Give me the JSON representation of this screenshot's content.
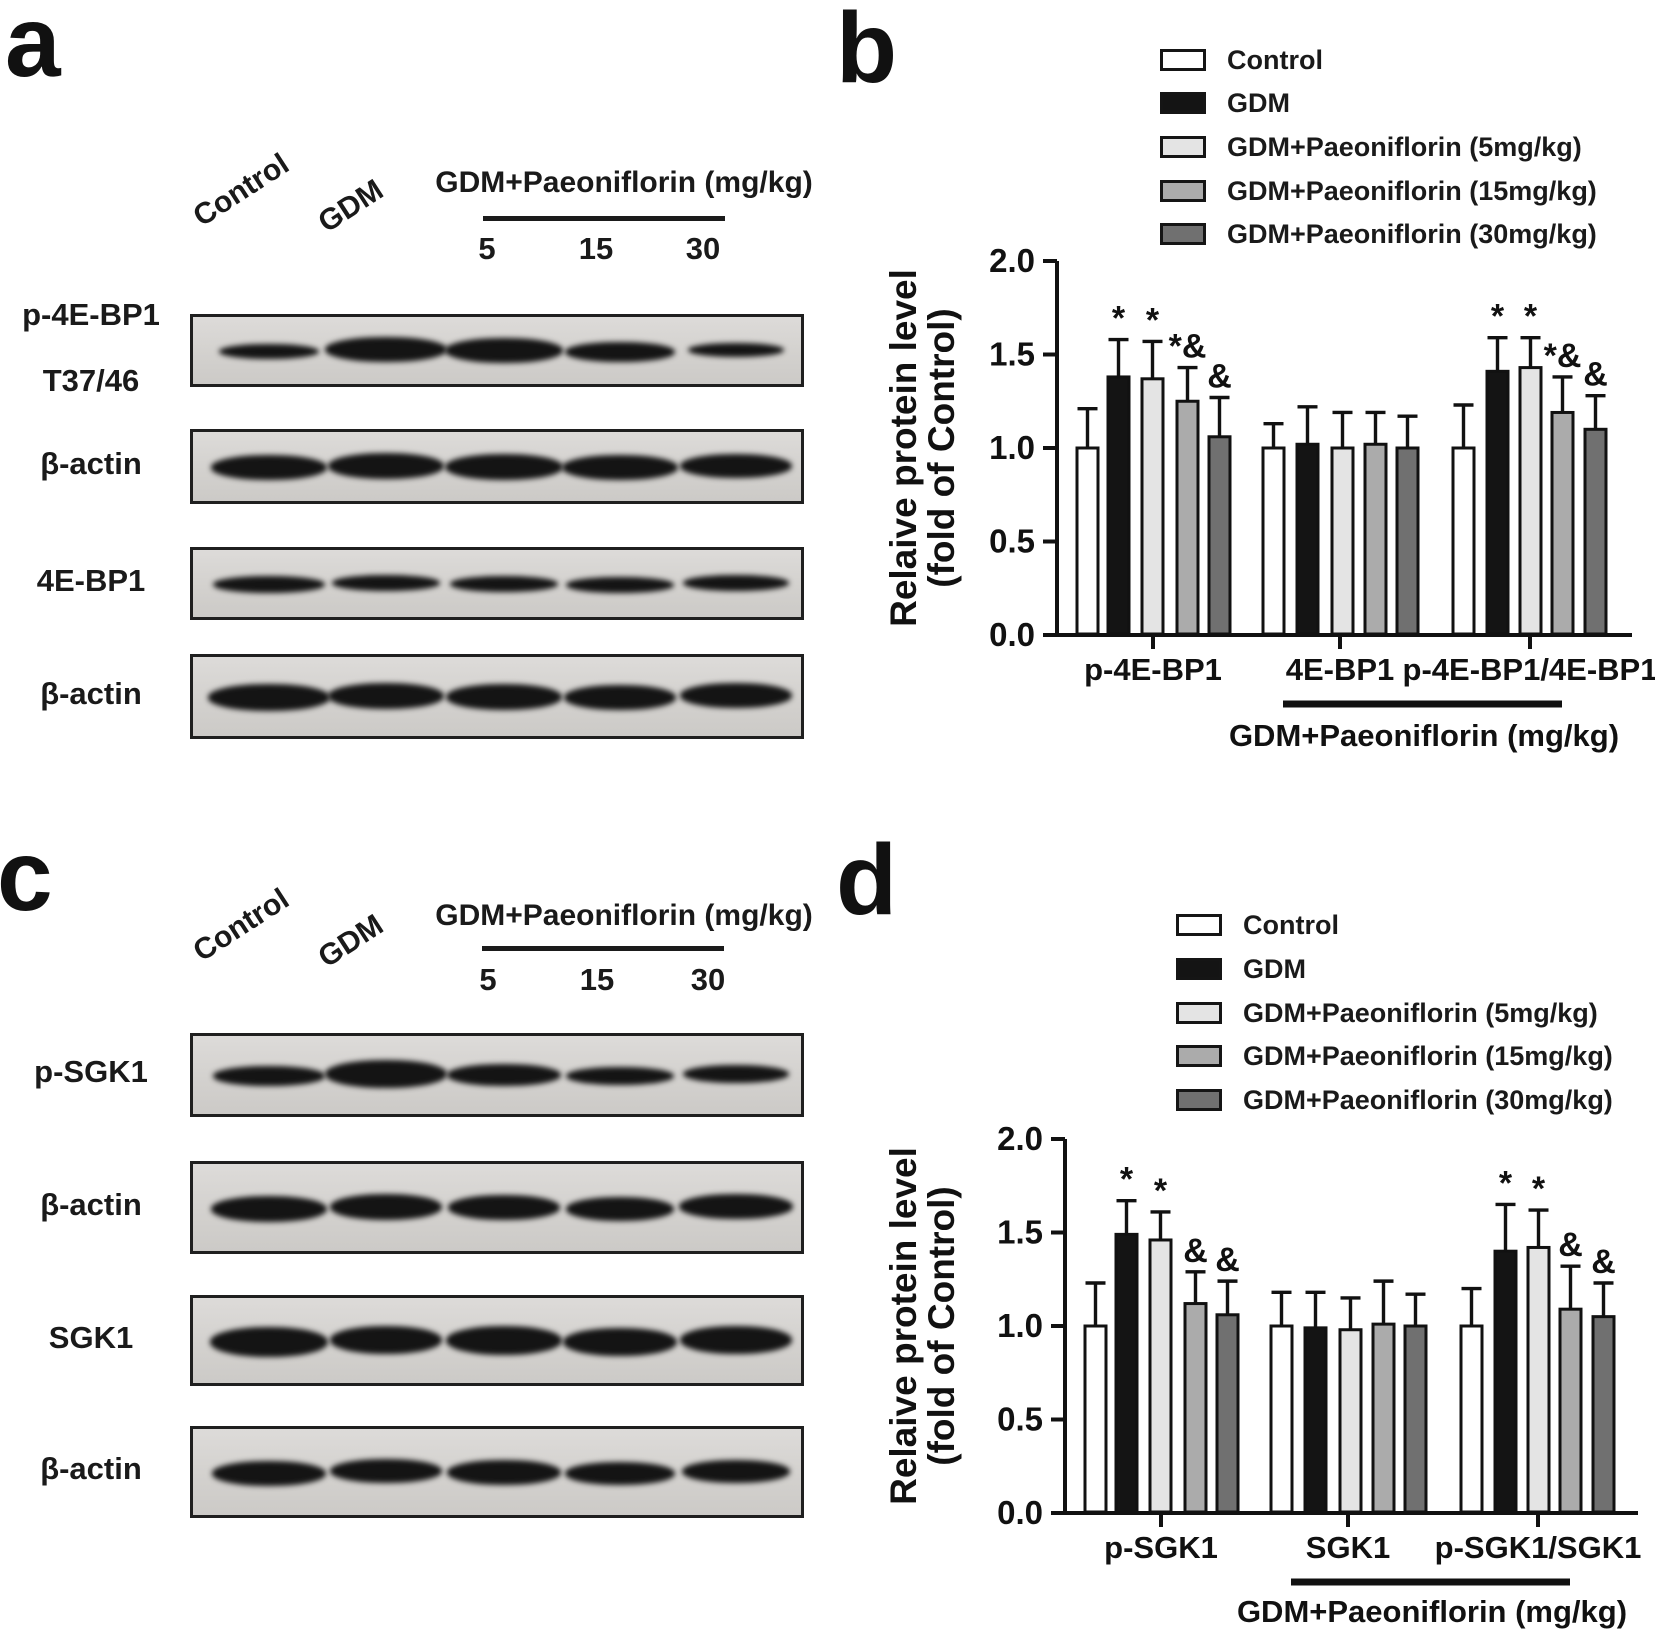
{
  "figure": {
    "panels": {
      "a": {
        "letter": "a",
        "treatment_header": "GDM+Paeoniflorin (mg/kg)",
        "doses": [
          "5",
          "15",
          "30"
        ],
        "lane_labels": [
          "Control",
          "GDM"
        ],
        "blot_rows": [
          {
            "label": "p-4E-BP1",
            "sublabel": "T37/46",
            "band_widths": [
              100,
              122,
              118,
              110,
              96
            ],
            "band_heights": [
              15,
              25,
              25,
              20,
              14
            ]
          },
          {
            "label": "β-actin",
            "sublabel": "",
            "band_widths": [
              116,
              116,
              118,
              116,
              112
            ],
            "band_heights": [
              25,
              26,
              26,
              25,
              24
            ]
          },
          {
            "label": "4E-BP1",
            "sublabel": "",
            "band_widths": [
              112,
              108,
              108,
              108,
              106
            ],
            "band_heights": [
              17,
              16,
              16,
              16,
              16
            ]
          },
          {
            "label": "β-actin",
            "sublabel": "",
            "band_widths": [
              122,
              116,
              116,
              112,
              112
            ],
            "band_heights": [
              27,
              26,
              26,
              25,
              25
            ]
          }
        ]
      },
      "b": {
        "letter": "b"
      },
      "c": {
        "letter": "c",
        "treatment_header": "GDM+Paeoniflorin (mg/kg)",
        "doses": [
          "5",
          "15",
          "30"
        ],
        "lane_labels": [
          "Control",
          "GDM"
        ],
        "blot_rows": [
          {
            "label": "p-SGK1",
            "sublabel": "",
            "band_widths": [
              112,
              122,
              114,
              108,
              106
            ],
            "band_heights": [
              20,
              28,
              22,
              18,
              18
            ]
          },
          {
            "label": "β-actin",
            "sublabel": "",
            "band_widths": [
              116,
              112,
              112,
              108,
              114
            ],
            "band_heights": [
              26,
              26,
              25,
              24,
              25
            ]
          },
          {
            "label": "SGK1",
            "sublabel": "",
            "band_widths": [
              118,
              112,
              116,
              114,
              112
            ],
            "band_heights": [
              30,
              28,
              29,
              28,
              28
            ]
          },
          {
            "label": "β-actin",
            "sublabel": "",
            "band_widths": [
              114,
              112,
              114,
              110,
              108
            ],
            "band_heights": [
              25,
              24,
              25,
              23,
              23
            ]
          }
        ]
      },
      "d": {
        "letter": "d"
      }
    }
  },
  "legend": {
    "items": [
      {
        "label": "Control",
        "color": "#ffffff"
      },
      {
        "label": "GDM",
        "color": "#141414"
      },
      {
        "label": "GDM+Paeoniflorin (5mg/kg)",
        "color": "#e4e4e4"
      },
      {
        "label": "GDM+Paeoniflorin (15mg/kg)",
        "color": "#ababab"
      },
      {
        "label": "GDM+Paeoniflorin (30mg/kg)",
        "color": "#707070"
      }
    ]
  },
  "chart_data": [
    {
      "type": "bar",
      "panel": "b",
      "title": "",
      "ylabel": "Relaive protein level (fold of Control)",
      "ylabel_lines": [
        "Relaive protein level",
        "(fold of Control)"
      ],
      "ylim": [
        0.0,
        2.0
      ],
      "yticks": [
        "0.0",
        "0.5",
        "1.0",
        "1.5",
        "2.0"
      ],
      "grid": false,
      "legend_position": "top-right",
      "series": [
        "Control",
        "GDM",
        "GDM+Paeoniflorin (5mg/kg)",
        "GDM+Paeoniflorin (15mg/kg)",
        "GDM+Paeoniflorin (30mg/kg)"
      ],
      "series_colors": [
        "#ffffff",
        "#141414",
        "#e4e4e4",
        "#ababab",
        "#707070"
      ],
      "categories": [
        "p-4E-BP1",
        "4E-BP1",
        "p-4E-BP1/4E-BP1"
      ],
      "groups": [
        {
          "category": "p-4E-BP1",
          "values": [
            1.0,
            1.38,
            1.37,
            1.25,
            1.06
          ],
          "errors": [
            0.21,
            0.2,
            0.2,
            0.18,
            0.21
          ],
          "markers": [
            "",
            "*",
            "*",
            "*&",
            "&"
          ]
        },
        {
          "category": "4E-BP1",
          "values": [
            1.0,
            1.02,
            1.0,
            1.02,
            1.0
          ],
          "errors": [
            0.13,
            0.2,
            0.19,
            0.17,
            0.17
          ],
          "markers": [
            "",
            "",
            "",
            "",
            ""
          ]
        },
        {
          "category": "p-4E-BP1/4E-BP1",
          "values": [
            1.0,
            1.41,
            1.43,
            1.19,
            1.1
          ],
          "errors": [
            0.23,
            0.18,
            0.16,
            0.19,
            0.18
          ],
          "markers": [
            "",
            "*",
            "*",
            "*&",
            "&"
          ]
        }
      ],
      "axis_annotation": {
        "text": "GDM+Paeoniflorin (mg/kg)",
        "underline_span": "4E-BP1 to p-4E-BP1/4E-BP1"
      }
    },
    {
      "type": "bar",
      "panel": "d",
      "title": "",
      "ylabel": "Relaive protein level (fold of Control)",
      "ylabel_lines": [
        "Relaive protein level",
        "(fold of Control)"
      ],
      "ylim": [
        0.0,
        2.0
      ],
      "yticks": [
        "0.0",
        "0.5",
        "1.0",
        "1.5",
        "2.0"
      ],
      "grid": false,
      "legend_position": "top-right",
      "series": [
        "Control",
        "GDM",
        "GDM+Paeoniflorin (5mg/kg)",
        "GDM+Paeoniflorin (15mg/kg)",
        "GDM+Paeoniflorin (30mg/kg)"
      ],
      "series_colors": [
        "#ffffff",
        "#141414",
        "#e4e4e4",
        "#ababab",
        "#707070"
      ],
      "categories": [
        "p-SGK1",
        "SGK1",
        "p-SGK1/SGK1"
      ],
      "groups": [
        {
          "category": "p-SGK1",
          "values": [
            1.0,
            1.49,
            1.46,
            1.12,
            1.06
          ],
          "errors": [
            0.23,
            0.18,
            0.15,
            0.17,
            0.18
          ],
          "markers": [
            "",
            "*",
            "*",
            "&",
            "&"
          ]
        },
        {
          "category": "SGK1",
          "values": [
            1.0,
            0.99,
            0.98,
            1.01,
            1.0
          ],
          "errors": [
            0.18,
            0.19,
            0.17,
            0.23,
            0.17
          ],
          "markers": [
            "",
            "",
            "",
            "",
            ""
          ]
        },
        {
          "category": "p-SGK1/SGK1",
          "values": [
            1.0,
            1.4,
            1.42,
            1.09,
            1.05
          ],
          "errors": [
            0.2,
            0.25,
            0.2,
            0.23,
            0.18
          ],
          "markers": [
            "",
            "*",
            "*",
            "&",
            "&"
          ]
        }
      ],
      "axis_annotation": {
        "text": "GDM+Paeoniflorin (mg/kg)",
        "underline_span": "SGK1 to p-SGK1/SGK1"
      }
    }
  ]
}
